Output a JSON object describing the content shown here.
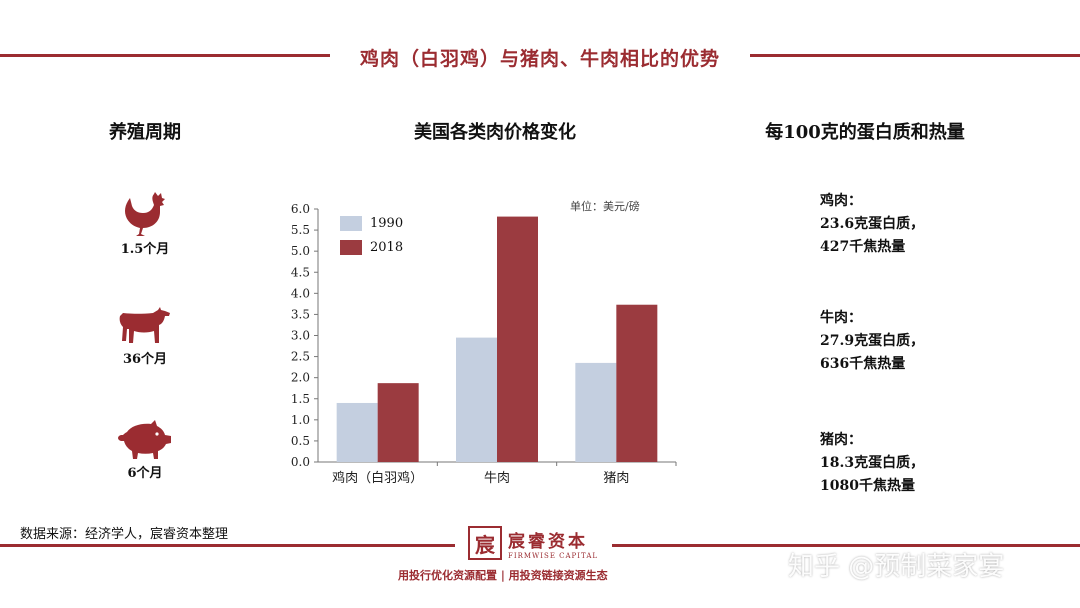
{
  "title": "鸡肉（白羽鸡）与猪肉、牛肉相比的优势",
  "sections": {
    "cycle_title": "养殖周期",
    "price_title": "美国各类肉价格变化",
    "protein_title": "每100克的蛋白质和热量"
  },
  "cycle": [
    {
      "icon": "chicken-icon",
      "label": "1.5个月"
    },
    {
      "icon": "cow-icon",
      "label": "36个月"
    },
    {
      "icon": "pig-icon",
      "label": "6个月"
    }
  ],
  "protein": [
    {
      "name": "鸡肉：",
      "protein": "23.6克蛋白质，",
      "energy": "427千焦热量"
    },
    {
      "name": "牛肉：",
      "protein": "27.9克蛋白质，",
      "energy": "636千焦热量"
    },
    {
      "name": "猪肉：",
      "protein": "18.3克蛋白质，",
      "energy": "1080千焦热量"
    }
  ],
  "chart_data": {
    "type": "bar",
    "title": "美国各类肉价格变化",
    "unit_label": "单位：美元/磅",
    "categories": [
      "鸡肉（白羽鸡）",
      "牛肉",
      "猪肉"
    ],
    "series": [
      {
        "name": "1990",
        "values": [
          1.4,
          2.95,
          2.35
        ],
        "color": "#c4cfe0"
      },
      {
        "name": "2018",
        "values": [
          1.87,
          5.82,
          3.73
        ],
        "color": "#9b3b40"
      }
    ],
    "ylim": [
      0,
      6
    ],
    "yticks": [
      "0.0",
      "0.5",
      "1.0",
      "1.5",
      "2.0",
      "2.5",
      "3.0",
      "3.5",
      "4.0",
      "4.5",
      "5.0",
      "5.5",
      "6.0"
    ],
    "legend_position": "top-left",
    "grid": false
  },
  "footer": {
    "source": "数据来源：经济学人，宸睿资本整理",
    "logo_mark": "宸",
    "logo_cn": "宸睿资本",
    "logo_en": "FIRMWISE CAPITAL",
    "slogan": "用投行优化资源配置 | 用投资链接资源生态",
    "watermark": "知乎 @预制菜家宴"
  },
  "colors": {
    "accent": "#9b2c31",
    "series_1990": "#c4cfe0",
    "series_2018": "#9b3b40"
  }
}
